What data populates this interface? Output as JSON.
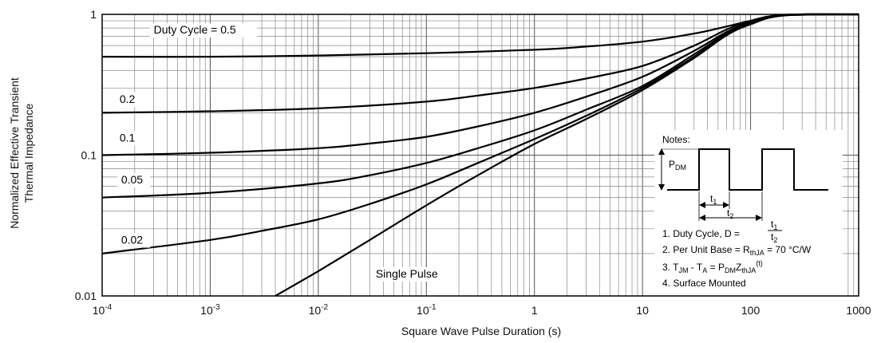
{
  "chart_data": {
    "type": "line",
    "title": "",
    "xlabel": "Square Wave Pulse Duration (s)",
    "ylabel_line1": "Normalized Effective Transient",
    "ylabel_line2": "Thermal Impedance",
    "x_scale": "log",
    "y_scale": "log",
    "xlim": [
      0.0001,
      1000
    ],
    "ylim": [
      0.01,
      1
    ],
    "grid": true,
    "x_ticks": [
      {
        "base": "10",
        "exp": "-4",
        "value": 0.0001
      },
      {
        "base": "10",
        "exp": "-3",
        "value": 0.001
      },
      {
        "base": "10",
        "exp": "-2",
        "value": 0.01
      },
      {
        "base": "10",
        "exp": "-1",
        "value": 0.1
      },
      {
        "base": "1",
        "exp": "",
        "value": 1
      },
      {
        "base": "10",
        "exp": "",
        "value": 10
      },
      {
        "base": "100",
        "exp": "",
        "value": 100
      },
      {
        "base": "1000",
        "exp": "",
        "value": 1000
      }
    ],
    "y_ticks": [
      {
        "label": "1",
        "value": 1
      },
      {
        "label": "0.1",
        "value": 0.1
      },
      {
        "label": "0.01",
        "value": 0.01
      }
    ],
    "series": [
      {
        "name": "Duty Cycle = 0.5",
        "label_x": 0.0003,
        "label_y": 0.73,
        "x": [
          0.0001,
          0.001,
          0.01,
          0.1,
          1,
          3,
          10,
          30,
          60,
          100,
          200,
          1000
        ],
        "y": [
          0.5,
          0.5,
          0.51,
          0.53,
          0.56,
          0.59,
          0.64,
          0.73,
          0.82,
          0.9,
          0.99,
          1.0
        ]
      },
      {
        "name": "0.2",
        "label_x": 0.000145,
        "label_y": 0.235,
        "x": [
          0.0001,
          0.001,
          0.01,
          0.1,
          0.3,
          1,
          3,
          10,
          30,
          60,
          100,
          200,
          1000
        ],
        "y": [
          0.2,
          0.205,
          0.215,
          0.24,
          0.265,
          0.3,
          0.35,
          0.43,
          0.6,
          0.78,
          0.9,
          0.99,
          1.0
        ]
      },
      {
        "name": "0.1",
        "label_x": 0.000145,
        "label_y": 0.125,
        "x": [
          0.0001,
          0.001,
          0.01,
          0.03,
          0.1,
          0.3,
          1,
          3,
          10,
          30,
          60,
          100,
          200,
          1000
        ],
        "y": [
          0.1,
          0.104,
          0.112,
          0.121,
          0.135,
          0.16,
          0.2,
          0.26,
          0.36,
          0.55,
          0.75,
          0.88,
          0.99,
          1.0
        ]
      },
      {
        "name": "0.05",
        "label_x": 0.00015,
        "label_y": 0.063,
        "x": [
          0.0001,
          0.001,
          0.01,
          0.03,
          0.1,
          0.3,
          1,
          3,
          10,
          30,
          60,
          100,
          200,
          1000
        ],
        "y": [
          0.05,
          0.054,
          0.063,
          0.072,
          0.088,
          0.112,
          0.15,
          0.21,
          0.31,
          0.52,
          0.73,
          0.87,
          0.99,
          1.0
        ]
      },
      {
        "name": "0.02",
        "label_x": 0.00015,
        "label_y": 0.0235,
        "x": [
          0.0001,
          0.001,
          0.003,
          0.01,
          0.03,
          0.1,
          0.3,
          1,
          3,
          10,
          30,
          60,
          100,
          200,
          1000
        ],
        "y": [
          0.02,
          0.025,
          0.029,
          0.035,
          0.045,
          0.062,
          0.088,
          0.13,
          0.19,
          0.3,
          0.5,
          0.72,
          0.86,
          0.98,
          1.0
        ]
      },
      {
        "name": "Single Pulse",
        "label_x": 0.034,
        "label_y": 0.0135,
        "x": [
          0.004,
          0.01,
          0.03,
          0.1,
          0.3,
          1,
          3,
          10,
          30,
          60,
          100,
          200,
          1000
        ],
        "y": [
          0.01,
          0.015,
          0.025,
          0.044,
          0.072,
          0.12,
          0.18,
          0.29,
          0.49,
          0.71,
          0.85,
          0.98,
          1.0
        ]
      }
    ]
  },
  "notes": {
    "heading": "Notes:",
    "pdm_main": "P",
    "pdm_sub": "DM",
    "t1_main": "t",
    "t1_sub": "1",
    "t2_main": "t",
    "t2_sub": "2",
    "n1_text": "1. Duty Cycle, D = ",
    "n1_num_main": "t",
    "n1_num_sub": "1",
    "n1_den_main": "t",
    "n1_den_sub": "2",
    "n2_pre": "2. Per Unit Base = R",
    "n2_sub": "thJA",
    "n2_post": " = 70 °C/W",
    "n3_a": "3. T",
    "n3_a_sub": "JM",
    "n3_b": " - T",
    "n3_b_sub": "A",
    "n3_c": " = P",
    "n3_c_sub": "DM",
    "n3_d": "Z",
    "n3_d_sub": "thJA",
    "n3_sup": "(t)",
    "n4": "4. Surface Mounted"
  }
}
